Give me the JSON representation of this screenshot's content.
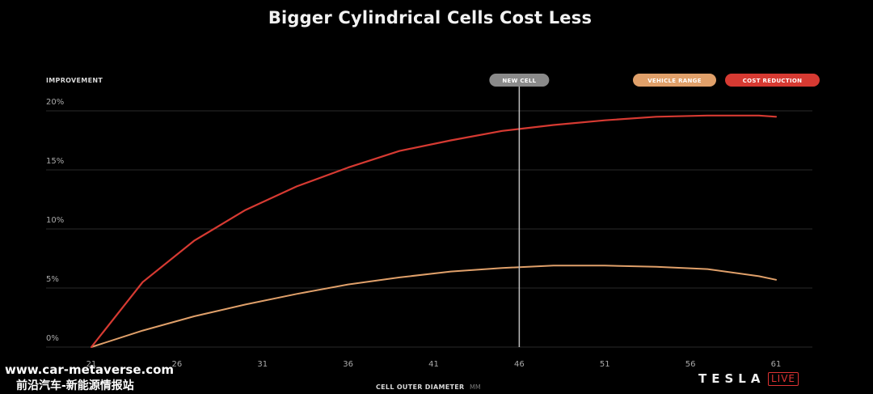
{
  "chart_data": {
    "type": "line",
    "title": "Bigger Cylindrical Cells Cost Less",
    "ylabel": "IMPROVEMENT",
    "xlabel": "CELL OUTER DIAMETER",
    "xunit": "MM",
    "xticks": [
      21,
      26,
      31,
      36,
      41,
      46,
      51,
      56,
      61
    ],
    "yticks": [
      "0%",
      "5%",
      "10%",
      "15%",
      "20%"
    ],
    "ytick_values": [
      0,
      5,
      10,
      15,
      20
    ],
    "xlim": [
      21,
      61
    ],
    "ylim": [
      0,
      20
    ],
    "grid": true,
    "legend": "top-right",
    "marker": {
      "x": 46,
      "label": "NEW CELL",
      "color": "#8a8a8a"
    },
    "series": [
      {
        "name": "VEHICLE RANGE",
        "color": "#e0a06a",
        "x": [
          21,
          24,
          27,
          30,
          33,
          36,
          39,
          42,
          45,
          48,
          51,
          54,
          57,
          60,
          61
        ],
        "y": [
          0,
          1.4,
          2.6,
          3.6,
          4.5,
          5.3,
          5.9,
          6.4,
          6.7,
          6.9,
          6.9,
          6.8,
          6.6,
          6.0,
          5.7
        ]
      },
      {
        "name": "COST REDUCTION",
        "color": "#d63a32",
        "x": [
          21,
          24,
          27,
          30,
          33,
          36,
          39,
          42,
          45,
          48,
          51,
          54,
          57,
          60,
          61
        ],
        "y": [
          0,
          5.5,
          9.0,
          11.6,
          13.6,
          15.2,
          16.6,
          17.5,
          18.3,
          18.8,
          19.2,
          19.5,
          19.6,
          19.6,
          19.5
        ]
      }
    ]
  },
  "watermark": {
    "line1": "www.car-metaverse.com",
    "line2": "前沿汽车-新能源情报站"
  },
  "brand": {
    "name": "TESLA",
    "live": "LIVE"
  }
}
